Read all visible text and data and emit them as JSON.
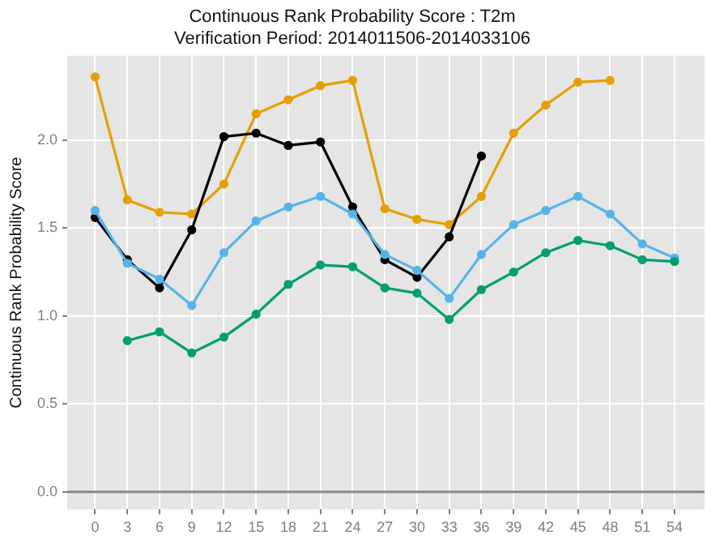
{
  "chart_data": {
    "type": "line",
    "title": "Continuous Rank Probability Score : T2m",
    "subtitle": "Verification Period: 2014011506-2014033106",
    "ylabel": "Continuous Rank Probability Score",
    "series": [
      {
        "color": "#e69f00",
        "x": [
          0,
          3,
          6,
          9,
          12,
          15,
          18,
          21,
          24,
          27,
          30,
          33,
          36,
          39,
          42,
          45,
          48
        ],
        "values": [
          2.36,
          1.66,
          1.59,
          1.58,
          1.75,
          2.15,
          2.23,
          2.31,
          2.34,
          1.61,
          1.55,
          1.52,
          1.68,
          2.04,
          2.2,
          2.33,
          2.34
        ]
      },
      {
        "color": "#000000",
        "x": [
          0,
          3,
          6,
          9,
          12,
          15,
          18,
          21,
          24,
          27,
          30,
          33,
          36
        ],
        "values": [
          1.56,
          1.32,
          1.16,
          1.49,
          2.02,
          2.04,
          1.97,
          1.99,
          1.62,
          1.32,
          1.22,
          1.45,
          1.91
        ]
      },
      {
        "color": "#56b4e9",
        "x": [
          0,
          3,
          6,
          9,
          12,
          15,
          18,
          21,
          24,
          27,
          30,
          33,
          36,
          39,
          42,
          45,
          48,
          51,
          54
        ],
        "values": [
          1.6,
          1.3,
          1.21,
          1.06,
          1.36,
          1.54,
          1.62,
          1.68,
          1.58,
          1.35,
          1.26,
          1.1,
          1.35,
          1.52,
          1.6,
          1.68,
          1.58,
          1.41,
          1.33
        ]
      },
      {
        "color": "#009e73",
        "x": [
          3,
          6,
          9,
          12,
          15,
          18,
          21,
          24,
          27,
          30,
          33,
          36,
          39,
          42,
          45,
          48,
          51,
          54
        ],
        "values": [
          0.86,
          0.91,
          0.79,
          0.88,
          1.01,
          1.18,
          1.29,
          1.28,
          1.16,
          1.13,
          0.98,
          1.15,
          1.25,
          1.36,
          1.43,
          1.4,
          1.32,
          1.31
        ]
      }
    ],
    "xlim": [
      -2.6,
      56.8
    ],
    "xticks": [
      0,
      3,
      6,
      9,
      12,
      15,
      18,
      21,
      24,
      27,
      30,
      33,
      36,
      39,
      42,
      45,
      48,
      51,
      54
    ],
    "ylim": [
      -0.1,
      2.48
    ],
    "yticks": [
      {
        "value": 0,
        "label": "0.0"
      },
      {
        "value": 0.5,
        "label": "0.5"
      },
      {
        "value": 1,
        "label": "1.0"
      },
      {
        "value": 1.5,
        "label": "1.5"
      },
      {
        "value": 2,
        "label": "2.0"
      }
    ],
    "ref_lines": [
      {
        "axis": "y",
        "value": 0,
        "color": "#888888"
      }
    ],
    "grid": true,
    "legend": false,
    "marker": "circle",
    "line_style": "solid"
  }
}
